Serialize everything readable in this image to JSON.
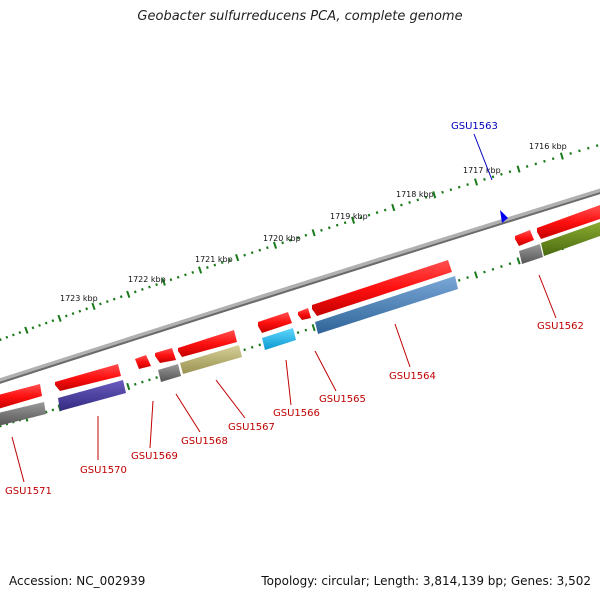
{
  "title": "Geobacter sulfurreducens PCA, complete genome",
  "footer": {
    "accession": "Accession: NC_002939",
    "summary": "Topology: circular; Length: 3,814,139 bp; Genes: 3,502"
  },
  "ticks": [
    {
      "label": "1716 kbp"
    },
    {
      "label": "1717 kbp"
    },
    {
      "label": "1718 kbp"
    },
    {
      "label": "1719 kbp"
    },
    {
      "label": "1720 kbp"
    },
    {
      "label": "1721 kbp"
    },
    {
      "label": "1722 kbp"
    },
    {
      "label": "1723 kbp"
    }
  ],
  "genes": [
    {
      "label": "GSU1562",
      "color": "#c00000"
    },
    {
      "label": "GSU1563",
      "color": "#0000bb"
    },
    {
      "label": "GSU1564",
      "color": "#c00000"
    },
    {
      "label": "GSU1565",
      "color": "#c00000"
    },
    {
      "label": "GSU1566",
      "color": "#c00000"
    },
    {
      "label": "GSU1567",
      "color": "#c00000"
    },
    {
      "label": "GSU1568",
      "color": "#c00000"
    },
    {
      "label": "GSU1569",
      "color": "#c00000"
    },
    {
      "label": "GSU1570",
      "color": "#c00000"
    },
    {
      "label": "GSU1571",
      "color": "#c00000"
    }
  ],
  "colors": {
    "cds": "#ff1010",
    "genome_line": "#8a8a8a",
    "scale_dots": "#1a7a1a",
    "feature_gray": "#6e6e6e",
    "feature_navy": "#4a3d9a",
    "feature_olive": "#b8b070",
    "feature_cyan": "#1ab8ee",
    "feature_steel": "#4a80b8",
    "feature_green": "#6a8a20",
    "marker_blue": "#0000ee"
  }
}
